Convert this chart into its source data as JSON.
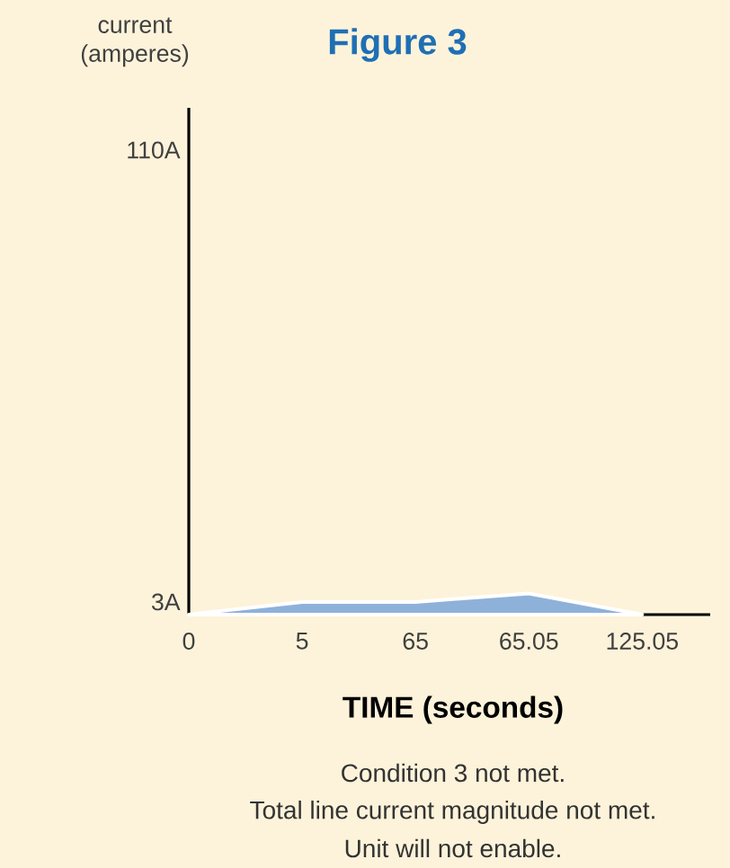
{
  "chart_data": {
    "type": "area",
    "title": "Figure 3",
    "ylabel": "current (amperes)",
    "xlabel": "TIME (seconds)",
    "categories": [
      "0",
      "5",
      "65",
      "65.05",
      "125.05"
    ],
    "values": [
      0,
      3,
      3,
      5,
      0
    ],
    "color": "#8eb1da",
    "ylim": [
      0,
      120
    ],
    "yticks": [
      {
        "value": 3,
        "label": "3A"
      },
      {
        "value": 110,
        "label": "110A"
      }
    ],
    "annotations": [
      "Condition 3 not met.",
      "Total line current magnitude not met.",
      "Unit will not enable."
    ]
  }
}
